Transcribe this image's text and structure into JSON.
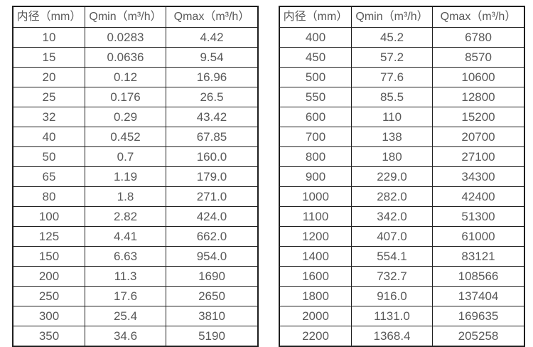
{
  "colors": {
    "background": "#ffffff",
    "table_border": "#1f1f1f",
    "text": "#595959"
  },
  "tables": [
    {
      "name": "flow-table-small-diameters",
      "headers": [
        "内径（mm）",
        "Qmin（m³/h）",
        "Qmax（m³/h）"
      ],
      "rows": [
        [
          "10",
          "0.0283",
          "4.42"
        ],
        [
          "15",
          "0.0636",
          "9.54"
        ],
        [
          "20",
          "0.12",
          "16.96"
        ],
        [
          "25",
          "0.176",
          "26.5"
        ],
        [
          "32",
          "0.29",
          "43.42"
        ],
        [
          "40",
          "0.452",
          "67.85"
        ],
        [
          "50",
          "0.7",
          "160.0"
        ],
        [
          "65",
          "1.19",
          "179.0"
        ],
        [
          "80",
          "1.8",
          "271.0"
        ],
        [
          "100",
          "2.82",
          "424.0"
        ],
        [
          "125",
          "4.41",
          "662.0"
        ],
        [
          "150",
          "6.63",
          "954.0"
        ],
        [
          "200",
          "11.3",
          "1690"
        ],
        [
          "250",
          "17.6",
          "2650"
        ],
        [
          "300",
          "25.4",
          "3810"
        ],
        [
          "350",
          "34.6",
          "5190"
        ]
      ]
    },
    {
      "name": "flow-table-large-diameters",
      "headers": [
        "内径（mm）",
        "Qmin（m³/h）",
        "Qmax（m³/h）"
      ],
      "rows": [
        [
          "400",
          "45.2",
          "6780"
        ],
        [
          "450",
          "57.2",
          "8570"
        ],
        [
          "500",
          "77.6",
          "10600"
        ],
        [
          "550",
          "85.5",
          "12800"
        ],
        [
          "600",
          "110",
          "15200"
        ],
        [
          "700",
          "138",
          "20700"
        ],
        [
          "800",
          "180",
          "27100"
        ],
        [
          "900",
          "229.0",
          "34300"
        ],
        [
          "1000",
          "282.0",
          "42400"
        ],
        [
          "1100",
          "342.0",
          "51300"
        ],
        [
          "1200",
          "407.0",
          "61000"
        ],
        [
          "1400",
          "554.1",
          "83121"
        ],
        [
          "1600",
          "732.7",
          "108566"
        ],
        [
          "1800",
          "916.0",
          "137404"
        ],
        [
          "2000",
          "1131.0",
          "169635"
        ],
        [
          "2200",
          "1368.4",
          "205258"
        ]
      ]
    }
  ]
}
